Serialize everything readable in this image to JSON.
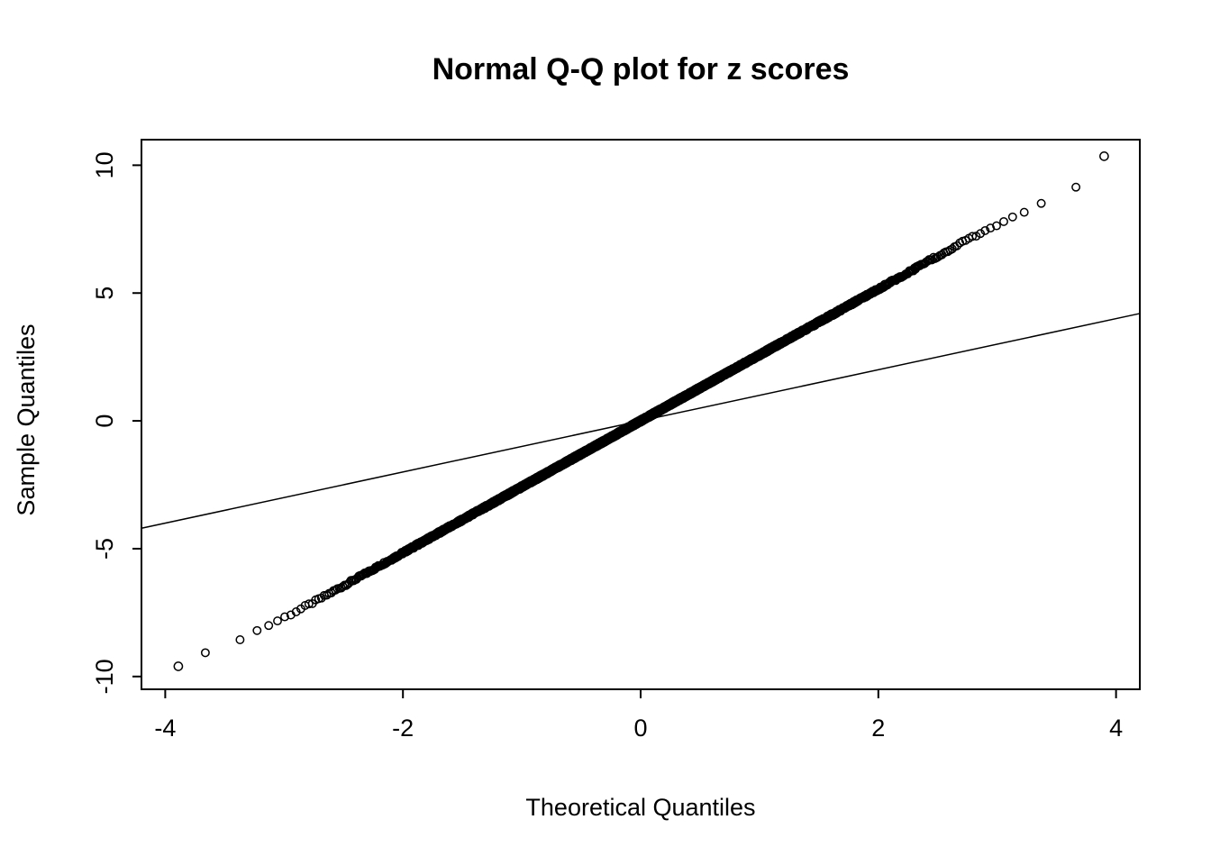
{
  "page": {
    "background": "#ffffff"
  },
  "chart_data": {
    "type": "scatter",
    "subtype": "normal-qq-plot",
    "title": "Normal Q-Q plot for z scores",
    "xlabel": "Theoretical Quantiles",
    "ylabel": "Sample Quantiles",
    "xlim": [
      -4.2,
      4.2
    ],
    "ylim": [
      -10.5,
      11.0
    ],
    "x_ticks": [
      -4,
      -2,
      0,
      2,
      4
    ],
    "y_ticks": [
      -10,
      -5,
      0,
      5,
      10
    ],
    "grid": false,
    "legend": null,
    "marker": "open-circle",
    "point_color": "#000000",
    "axis_color": "#000000",
    "points_model": {
      "n": 4000,
      "slope": 2.58,
      "intercept": 0,
      "jitter": 0.1,
      "tail_compression": {
        "start": 2.6,
        "k": 0.3
      },
      "description": "Sample quantiles ~ 2.58 * theoretical normal quantiles, with slight flattening in the extreme tails; points form a dense straight band through the origin"
    },
    "outlier_points": [
      [
        -3.89,
        -9.6
      ],
      [
        3.9,
        10.35
      ]
    ],
    "reference_line": {
      "slope": 1,
      "intercept": 0,
      "description": "reference line y = x crossing band at origin"
    },
    "readings": [
      [
        -3.9,
        -9.6
      ],
      [
        -3.5,
        -8.85
      ],
      [
        -3.0,
        -7.85
      ],
      [
        -2.5,
        -6.5
      ],
      [
        -2.0,
        -5.2
      ],
      [
        -1.5,
        -3.9
      ],
      [
        -1.0,
        -2.6
      ],
      [
        -0.5,
        -1.3
      ],
      [
        0.0,
        0.0
      ],
      [
        0.5,
        1.3
      ],
      [
        1.0,
        2.6
      ],
      [
        1.5,
        3.9
      ],
      [
        2.0,
        5.2
      ],
      [
        2.5,
        6.5
      ],
      [
        3.0,
        7.85
      ],
      [
        3.3,
        8.6
      ],
      [
        3.6,
        9.3
      ],
      [
        3.9,
        10.35
      ]
    ]
  }
}
